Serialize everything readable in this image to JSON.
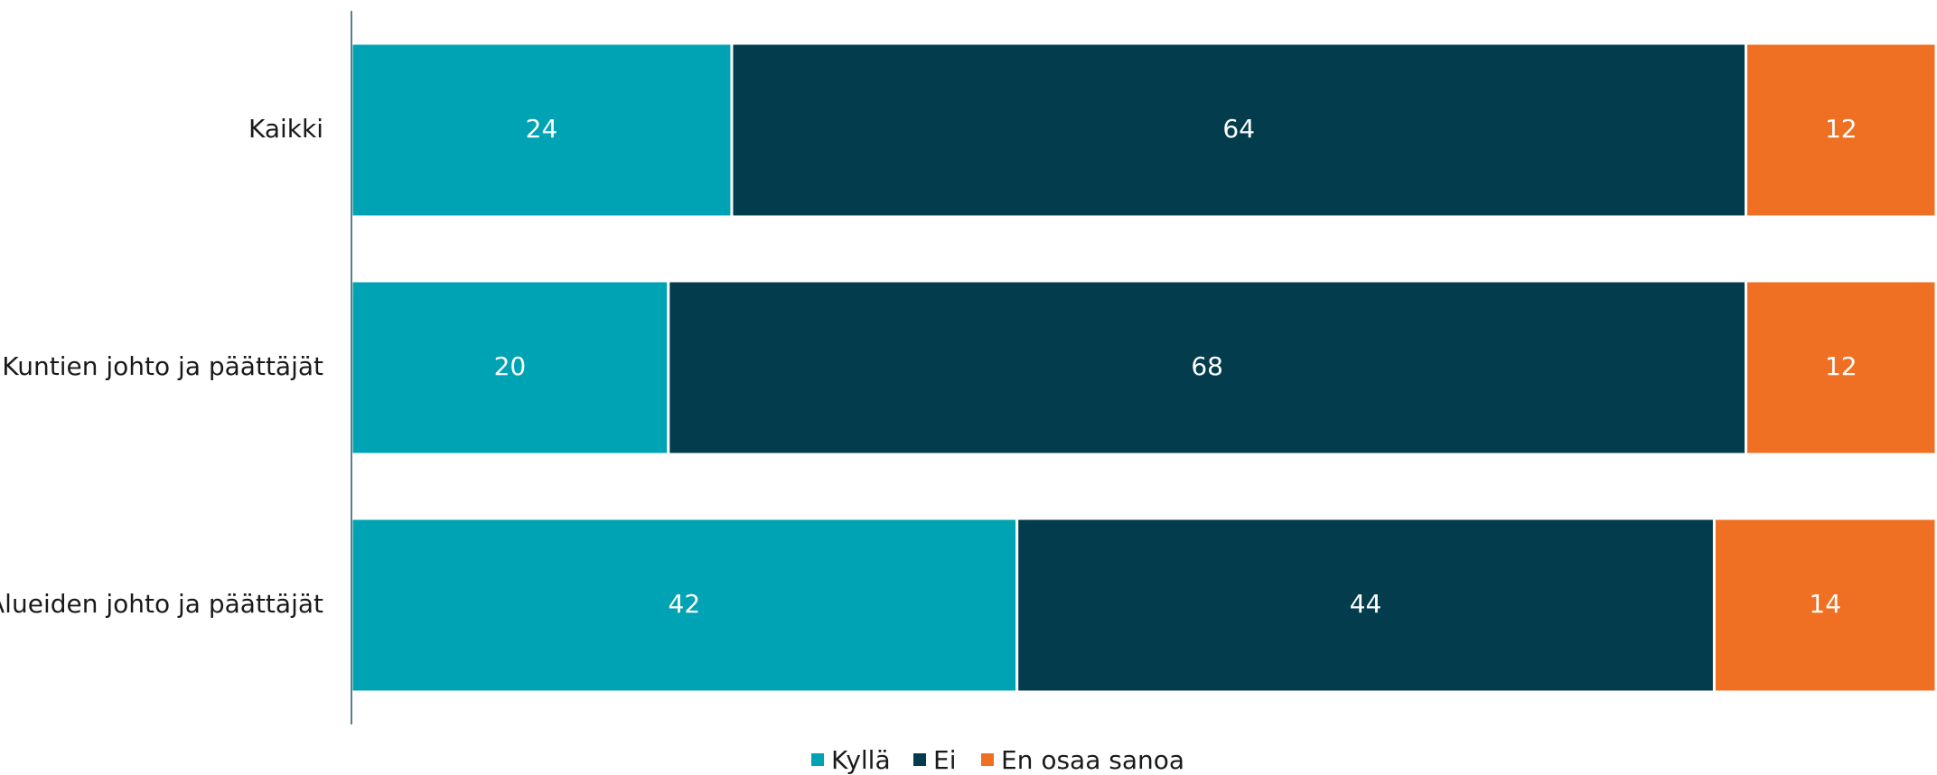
{
  "chart_data": {
    "type": "bar",
    "orientation": "horizontal",
    "stacked": true,
    "categories": [
      "Kaikki",
      "Kuntien johto ja päättäjät",
      "Alueiden johto ja päättäjät"
    ],
    "series": [
      {
        "name": "Kyllä",
        "values": [
          24,
          20,
          42
        ],
        "color": "#00a3b4"
      },
      {
        "name": "Ei",
        "values": [
          64,
          68,
          44
        ],
        "color": "#033c4c"
      },
      {
        "name": "En osaa sanoa",
        "values": [
          12,
          12,
          14
        ],
        "color": "#ef7022"
      }
    ],
    "xlim": [
      0,
      100
    ],
    "grid": false,
    "legend_position": "bottom",
    "title": "",
    "xlabel": "",
    "ylabel": ""
  }
}
